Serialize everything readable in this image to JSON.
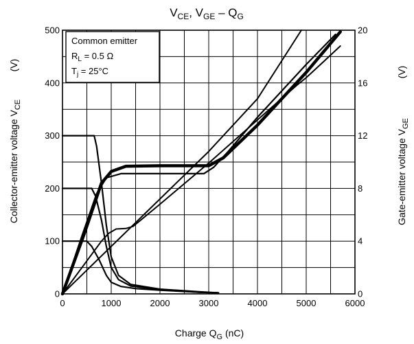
{
  "chart_data": {
    "type": "line",
    "title": {
      "main": "V",
      "sub1": "CE",
      "mid": ", V",
      "sub2": "GE",
      "end": " – Q",
      "sub3": "G"
    },
    "xlabel": {
      "main": "Charge   Q",
      "sub": "G",
      "unit": "   (nC)"
    },
    "ylabel_left": {
      "main": "Collector-emitter voltage   V",
      "sub": "CE",
      "unit": "(V)"
    },
    "ylabel_right": {
      "main": "Gate-emitter voltage   V",
      "sub": "GE",
      "unit": "(V)"
    },
    "xlim": [
      0,
      6000
    ],
    "ylim_left": [
      0,
      500
    ],
    "ylim_right": [
      0,
      20
    ],
    "x_ticks": [
      "0",
      "1000",
      "2000",
      "3000",
      "4000",
      "5000",
      "6000"
    ],
    "y_left_ticks": [
      "0",
      "100",
      "200",
      "300",
      "400",
      "500"
    ],
    "y_right_ticks": [
      "0",
      "4",
      "8",
      "12",
      "16",
      "20"
    ],
    "grid": true,
    "annotation": {
      "line1": "Common emitter",
      "line2_main": "R",
      "line2_sub": "L",
      "line2_rest": " = 0.5 Ω",
      "line3_main": "T",
      "line3_sub": "j",
      "line3_rest": " = 25°C"
    },
    "series": [
      {
        "axis": "left",
        "width": 2.2,
        "points": [
          [
            0,
            300
          ],
          [
            650,
            300
          ],
          [
            700,
            280
          ],
          [
            800,
            210
          ],
          [
            900,
            130
          ],
          [
            1000,
            70
          ],
          [
            1150,
            35
          ],
          [
            1400,
            18
          ],
          [
            2000,
            9
          ],
          [
            2800,
            4
          ],
          [
            3200,
            2
          ]
        ]
      },
      {
        "axis": "left",
        "width": 2.2,
        "points": [
          [
            0,
            200
          ],
          [
            600,
            200
          ],
          [
            680,
            185
          ],
          [
            800,
            140
          ],
          [
            900,
            90
          ],
          [
            1000,
            50
          ],
          [
            1150,
            27
          ],
          [
            1400,
            15
          ],
          [
            2000,
            8
          ],
          [
            2800,
            3
          ],
          [
            3200,
            2
          ]
        ]
      },
      {
        "axis": "left",
        "width": 2.2,
        "points": [
          [
            0,
            100
          ],
          [
            500,
            100
          ],
          [
            600,
            90
          ],
          [
            750,
            65
          ],
          [
            900,
            35
          ],
          [
            1000,
            22
          ],
          [
            1200,
            14
          ],
          [
            1500,
            10
          ],
          [
            2000,
            7
          ],
          [
            2800,
            3
          ],
          [
            3200,
            2
          ]
        ]
      },
      {
        "axis": "left",
        "width": 2,
        "points": [
          [
            0,
            0
          ],
          [
            800,
            100
          ],
          [
            950,
            115
          ],
          [
            1100,
            123
          ],
          [
            1300,
            124
          ],
          [
            1450,
            128
          ],
          [
            2000,
            170
          ],
          [
            3000,
            248
          ],
          [
            4000,
            330
          ],
          [
            4800,
            395
          ],
          [
            5000,
            410
          ],
          [
            5350,
            440
          ],
          [
            5700,
            470
          ]
        ]
      },
      {
        "axis": "left",
        "width": 2.2,
        "points": [
          [
            0,
            0
          ],
          [
            400,
            110
          ],
          [
            700,
            190
          ],
          [
            900,
            220
          ],
          [
            1200,
            228
          ],
          [
            2000,
            228
          ],
          [
            2900,
            228
          ],
          [
            3100,
            240
          ],
          [
            3400,
            270
          ],
          [
            4000,
            335
          ],
          [
            5000,
            435
          ],
          [
            5600,
            492
          ]
        ]
      },
      {
        "axis": "left",
        "width": 4.5,
        "points": [
          [
            0,
            0
          ],
          [
            450,
            115
          ],
          [
            800,
            210
          ],
          [
            1000,
            232
          ],
          [
            1300,
            242
          ],
          [
            2000,
            243
          ],
          [
            3000,
            243
          ],
          [
            3300,
            258
          ],
          [
            4000,
            320
          ],
          [
            5000,
            420
          ],
          [
            5700,
            497
          ]
        ]
      },
      {
        "axis": "left",
        "width": 2,
        "points": [
          [
            0,
            0
          ],
          [
            3000,
            270
          ],
          [
            4000,
            370
          ],
          [
            4900,
            500
          ]
        ]
      }
    ]
  }
}
